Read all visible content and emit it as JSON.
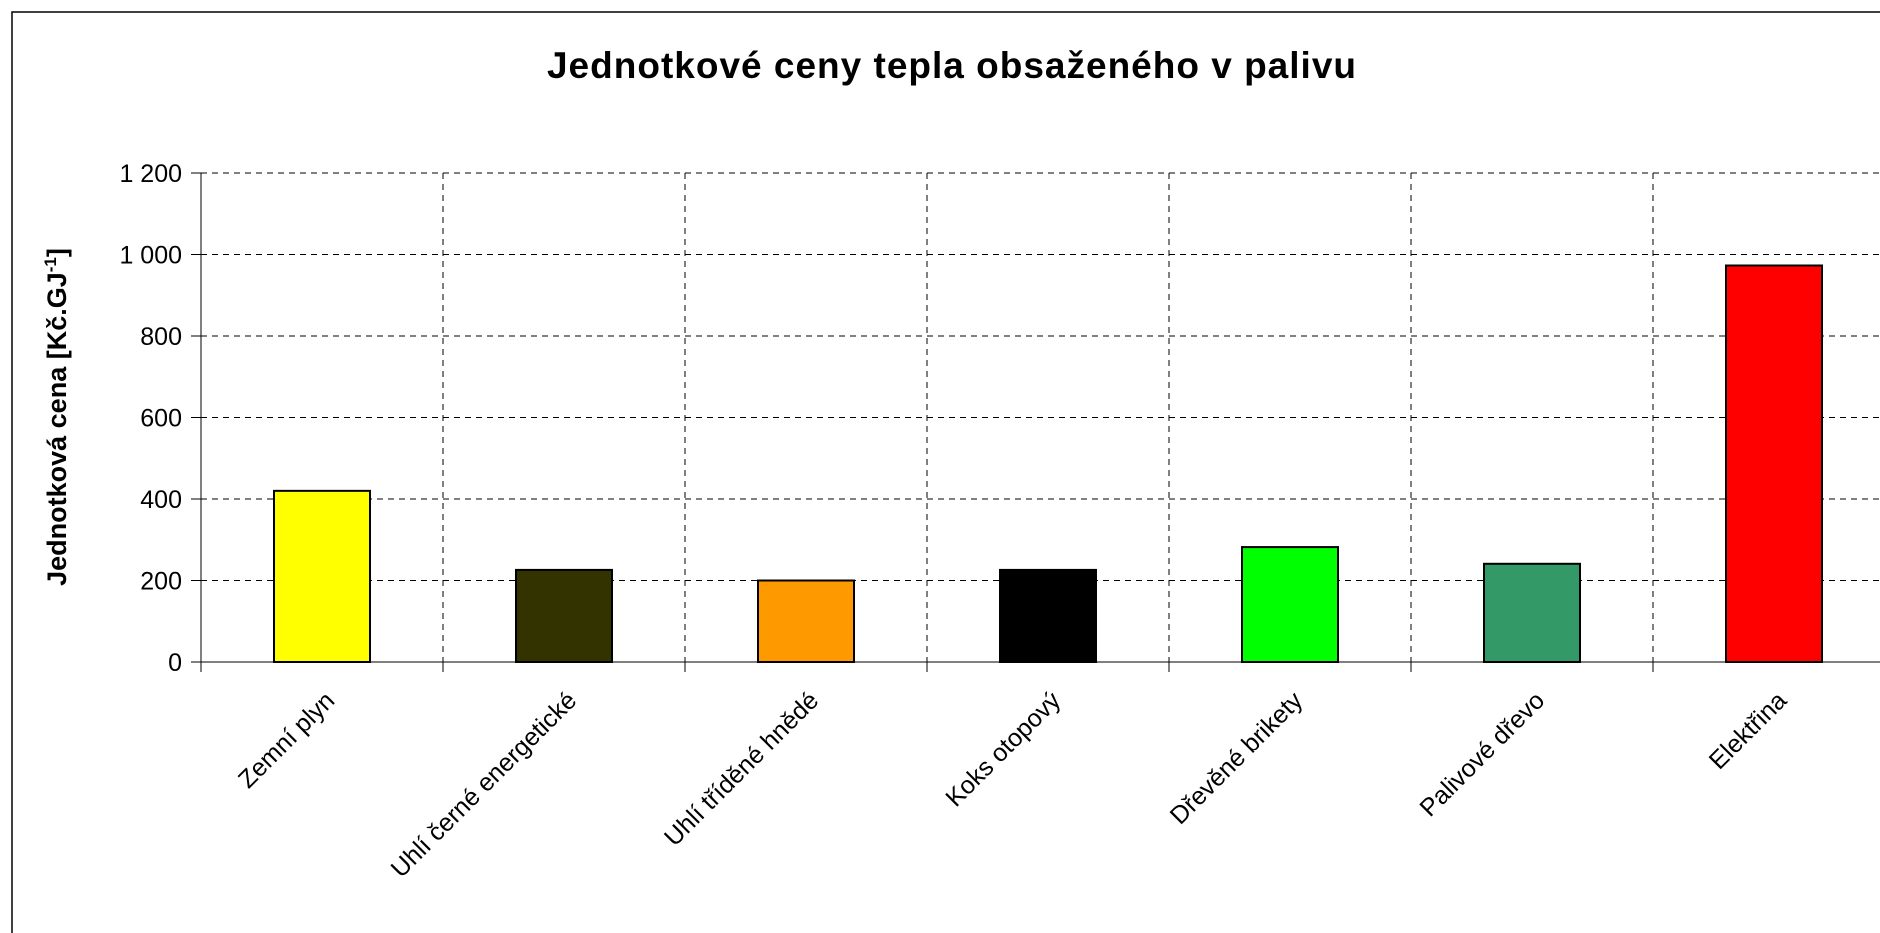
{
  "chart_data": {
    "type": "bar",
    "title": "Jednotkové ceny tepla obsaženého v palivu",
    "y_label": {
      "text": "Jednotková cena [Kč.GJ",
      "superscript": "-1",
      "suffix": "]"
    },
    "categories": [
      "Zemní plyn",
      "Uhlí černé energetické",
      "Uhlí tříděné hnědé",
      "Koks otopový",
      "Dřevěné brikety",
      "Palivové dřevo",
      "Elektřina"
    ],
    "values": [
      420,
      226,
      200,
      226,
      282,
      241,
      973
    ],
    "colors": [
      "#ffff00",
      "#333300",
      "#ff9900",
      "#000000",
      "#00ff00",
      "#339966",
      "#ff0000"
    ],
    "ylim": [
      0,
      1200
    ],
    "yticks": [
      0,
      200,
      400,
      600,
      800,
      {
        "value": 1000,
        "label": "1 000"
      },
      {
        "value": 1200,
        "label": "1 200"
      }
    ],
    "grid": true
  }
}
